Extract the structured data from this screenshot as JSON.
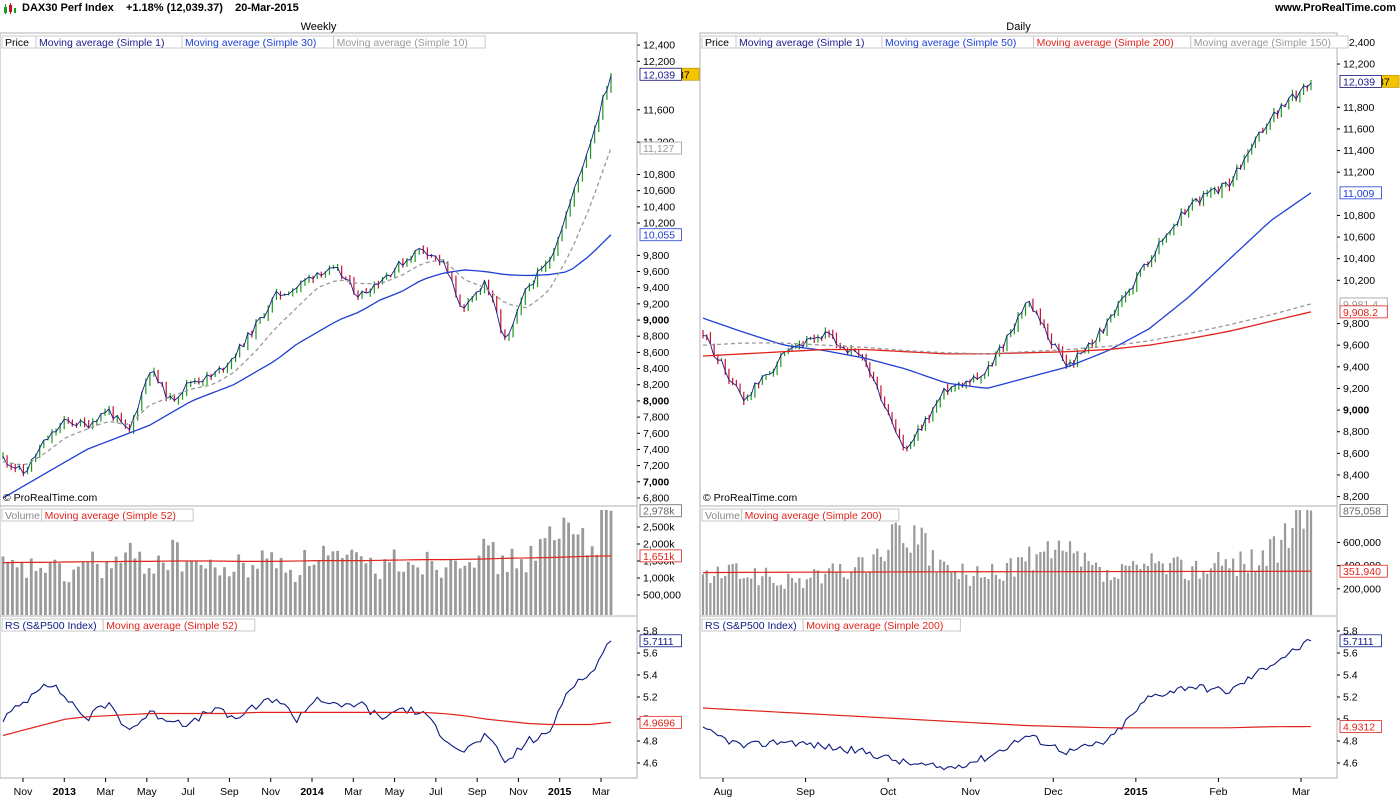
{
  "header": {
    "symbol": "DAX30 Perf Index",
    "change": "+1.18% (12,039.37)",
    "date": "20-Mar-2015",
    "website": "www.ProRealTime.com"
  },
  "colors": {
    "price_up": "#1a9a1a",
    "price_down": "#c8102e",
    "ma_short": "#1a1a8c",
    "ma_blue": "#1f3fd6",
    "ma_red": "#e0231b",
    "ma_gray": "#9a9a9a",
    "volume": "#9a9a9a",
    "rs": "#0a1a80",
    "last_price_box": "#f5c400"
  },
  "panels": {
    "weekly": {
      "period_label": "Weekly",
      "price_legend": [
        "Price",
        "Moving average (Simple 1)",
        "Moving average (Simple 30)",
        "Moving average (Simple 10)"
      ],
      "price_ticks": [
        "12,400",
        "12,200",
        "11,600",
        "11,200",
        "10,800",
        "10,600",
        "10,400",
        "10,200",
        "9,800",
        "9,600",
        "9,400",
        "9,200",
        "9,000",
        "8,800",
        "8,600",
        "8,400",
        "8,200",
        "8,000",
        "7,800",
        "7,600",
        "7,400",
        "7,200",
        "7,000",
        "6,800"
      ],
      "price_boxes": [
        {
          "label": "12,039.37",
          "kind": "last"
        },
        {
          "label": "12,039",
          "kind": "ma_short"
        },
        {
          "label": "11,127",
          "kind": "ma_gray"
        },
        {
          "label": "10,055",
          "kind": "ma_blue"
        }
      ],
      "copyright": "© ProRealTime.com",
      "volume_legend": [
        "Volume",
        "Moving average (Simple 52)"
      ],
      "volume_ticks": [
        "2,500k",
        "2,000k",
        "1,500k",
        "1,000k",
        "500,000"
      ],
      "volume_boxes": [
        {
          "label": "2,978k",
          "kind": "volume"
        },
        {
          "label": "1,651k",
          "kind": "ma_red"
        }
      ],
      "rs_legend": [
        "RS (S&P500 Index)",
        "Moving average (Simple 52)"
      ],
      "rs_ticks": [
        "5.8",
        "5.6",
        "5.4",
        "5.2",
        "5",
        "4.8",
        "4.6"
      ],
      "rs_boxes": [
        {
          "label": "5.7111",
          "kind": "rs"
        },
        {
          "label": "4.9696",
          "kind": "ma_red"
        }
      ],
      "x_labels": [
        "Nov",
        "2013",
        "Mar",
        "May",
        "Jul",
        "Sep",
        "Nov",
        "2014",
        "Mar",
        "May",
        "Jul",
        "Sep",
        "Nov",
        "2015",
        "Mar"
      ]
    },
    "daily": {
      "period_label": "Daily",
      "price_legend": [
        "Price",
        "Moving average (Simple 1)",
        "Moving average (Simple 50)",
        "Moving average (Simple 200)",
        "Moving average (Simple 150)"
      ],
      "price_ticks": [
        "12,400",
        "12,200",
        "11,800",
        "11,600",
        "11,400",
        "11,200",
        "10,800",
        "10,600",
        "10,400",
        "10,200",
        "9,800",
        "9,600",
        "9,400",
        "9,200",
        "9,000",
        "8,800",
        "8,600",
        "8,400",
        "8,200"
      ],
      "price_boxes": [
        {
          "label": "12,039.37",
          "kind": "last"
        },
        {
          "label": "12,039",
          "kind": "ma_short"
        },
        {
          "label": "11,009",
          "kind": "ma_blue"
        },
        {
          "label": "9,981.4",
          "kind": "ma_gray"
        },
        {
          "label": "9,908.2",
          "kind": "ma_red"
        }
      ],
      "copyright": "© ProRealTime.com",
      "volume_legend": [
        "Volume",
        "Moving average (Simple 200)"
      ],
      "volume_ticks": [
        "600,000",
        "400,000",
        "200,000"
      ],
      "volume_boxes": [
        {
          "label": "875,058",
          "kind": "volume"
        },
        {
          "label": "351,940",
          "kind": "ma_red"
        }
      ],
      "rs_legend": [
        "RS (S&P500 Index)",
        "Moving average (Simple 200)"
      ],
      "rs_ticks": [
        "5.8",
        "5.6",
        "5.4",
        "5.2",
        "5",
        "4.8",
        "4.6"
      ],
      "rs_boxes": [
        {
          "label": "5.7111",
          "kind": "rs"
        },
        {
          "label": "4.9312",
          "kind": "ma_red"
        }
      ],
      "x_labels": [
        "Aug",
        "Sep",
        "Oct",
        "Nov",
        "Dec",
        "2015",
        "Feb",
        "Mar"
      ]
    }
  },
  "chart_data": [
    {
      "type": "line",
      "panel": "weekly",
      "title": "Weekly",
      "ylim": [
        6750,
        12500
      ],
      "x": [
        "2012-10",
        "2012-11",
        "2012-12",
        "2013-01",
        "2013-02",
        "2013-03",
        "2013-04",
        "2013-05",
        "2013-06",
        "2013-07",
        "2013-08",
        "2013-09",
        "2013-10",
        "2013-11",
        "2013-12",
        "2014-01",
        "2014-02",
        "2014-03",
        "2014-04",
        "2014-05",
        "2014-06",
        "2014-07",
        "2014-08",
        "2014-09",
        "2014-10",
        "2014-11",
        "2014-12",
        "2015-01",
        "2015-02",
        "2015-03"
      ],
      "series": [
        {
          "name": "Price",
          "values": [
            7300,
            7100,
            7500,
            7750,
            7700,
            7900,
            7600,
            8400,
            8000,
            8250,
            8300,
            8550,
            8900,
            9300,
            9400,
            9600,
            9600,
            9300,
            9500,
            9700,
            9900,
            9700,
            9100,
            9500,
            8700,
            9400,
            9700,
            10400,
            11200,
            12039
          ]
        },
        {
          "name": "Moving average (Simple 30)",
          "values": [
            6800,
            6950,
            7100,
            7250,
            7400,
            7500,
            7600,
            7700,
            7850,
            8000,
            8100,
            8200,
            8350,
            8500,
            8700,
            8850,
            9000,
            9100,
            9250,
            9350,
            9500,
            9580,
            9620,
            9600,
            9560,
            9550,
            9560,
            9600,
            9800,
            10055
          ]
        },
        {
          "name": "Moving average (Simple 10)",
          "values": [
            7250,
            7200,
            7350,
            7550,
            7650,
            7750,
            7700,
            7950,
            8050,
            8150,
            8200,
            8350,
            8600,
            8900,
            9150,
            9400,
            9500,
            9450,
            9450,
            9550,
            9700,
            9750,
            9500,
            9400,
            9200,
            9150,
            9350,
            9800,
            10400,
            11127
          ]
        }
      ]
    },
    {
      "type": "bar",
      "panel": "weekly",
      "title": "Volume",
      "ylim": [
        0,
        3000000
      ],
      "values": [
        1300000,
        1200000,
        1400000,
        1000000,
        1500000,
        1300000,
        1600000,
        1400000,
        1700000,
        1500000,
        1200000,
        1300000,
        1400000,
        1600000,
        1200000,
        1800000,
        1500000,
        1400000,
        1300000,
        1600000,
        1500000,
        1400000,
        1900000,
        1700000,
        1400000,
        1600000,
        2000000,
        2400000,
        2100000,
        2978000
      ],
      "series": [
        {
          "name": "Moving average (Simple 52)",
          "values": [
            1450000,
            1460000,
            1460000,
            1470000,
            1480000,
            1480000,
            1490000,
            1490000,
            1500000,
            1500000,
            1500000,
            1490000,
            1490000,
            1490000,
            1500000,
            1510000,
            1510000,
            1510000,
            1520000,
            1530000,
            1540000,
            1540000,
            1550000,
            1560000,
            1580000,
            1590000,
            1600000,
            1620000,
            1640000,
            1651000
          ]
        }
      ]
    },
    {
      "type": "line",
      "panel": "weekly",
      "title": "RS (S&P500 Index)",
      "ylim": [
        4.5,
        5.9
      ],
      "series": [
        {
          "name": "RS (S&P500 Index)",
          "values": [
            5.0,
            5.15,
            5.35,
            5.2,
            5.0,
            5.15,
            4.9,
            5.05,
            5.0,
            4.95,
            5.1,
            5.0,
            5.1,
            5.2,
            5.0,
            5.2,
            5.1,
            5.15,
            5.0,
            5.1,
            5.05,
            4.85,
            4.7,
            4.85,
            4.6,
            4.8,
            4.85,
            5.3,
            5.4,
            5.7111
          ]
        },
        {
          "name": "Moving average (Simple 52)",
          "values": [
            4.85,
            4.9,
            4.95,
            5.0,
            5.02,
            5.03,
            5.04,
            5.05,
            5.05,
            5.05,
            5.05,
            5.05,
            5.06,
            5.06,
            5.06,
            5.06,
            5.06,
            5.06,
            5.06,
            5.06,
            5.06,
            5.05,
            5.03,
            5.0,
            4.98,
            4.96,
            4.95,
            4.95,
            4.95,
            4.9696
          ]
        }
      ]
    },
    {
      "type": "line",
      "panel": "daily",
      "title": "Daily",
      "ylim": [
        8150,
        12450
      ],
      "x": [
        "2014-08-01",
        "2014-08-15",
        "2014-09-01",
        "2014-09-15",
        "2014-10-01",
        "2014-10-15",
        "2014-11-01",
        "2014-11-15",
        "2014-12-01",
        "2014-12-15",
        "2015-01-01",
        "2015-01-15",
        "2015-02-01",
        "2015-02-15",
        "2015-03-01",
        "2015-03-20"
      ],
      "series": [
        {
          "name": "Price",
          "values": [
            9700,
            9100,
            9500,
            9700,
            9450,
            8600,
            9200,
            9350,
            10000,
            9400,
            9800,
            10400,
            10900,
            11100,
            11700,
            12039
          ]
        },
        {
          "name": "Moving average (Simple 50)",
          "values": [
            9850,
            9720,
            9600,
            9550,
            9480,
            9380,
            9250,
            9200,
            9300,
            9400,
            9550,
            9750,
            10050,
            10400,
            10750,
            11009
          ]
        },
        {
          "name": "Moving average (Simple 200)",
          "values": [
            9500,
            9520,
            9540,
            9560,
            9560,
            9540,
            9520,
            9520,
            9530,
            9540,
            9560,
            9600,
            9660,
            9730,
            9820,
            9908.2
          ]
        },
        {
          "name": "Moving average (Simple 150)",
          "values": [
            9600,
            9620,
            9620,
            9600,
            9580,
            9550,
            9530,
            9520,
            9540,
            9560,
            9590,
            9640,
            9710,
            9790,
            9880,
            9981.4
          ]
        }
      ]
    },
    {
      "type": "bar",
      "panel": "daily",
      "title": "Volume",
      "ylim": [
        0,
        880000
      ],
      "values": [
        300000,
        350000,
        250000,
        320000,
        400000,
        700000,
        350000,
        300000,
        450000,
        500000,
        300000,
        400000,
        380000,
        420000,
        500000,
        875058
      ],
      "series": [
        {
          "name": "Moving average (Simple 200)",
          "values": [
            340000,
            342000,
            343000,
            344000,
            345000,
            346000,
            347000,
            347000,
            348000,
            348000,
            349000,
            349000,
            350000,
            350000,
            351000,
            351940
          ]
        }
      ]
    },
    {
      "type": "line",
      "panel": "daily",
      "title": "RS (S&P500 Index)",
      "ylim": [
        4.5,
        5.9
      ],
      "series": [
        {
          "name": "RS (S&P500 Index)",
          "values": [
            4.9,
            4.75,
            4.8,
            4.75,
            4.7,
            4.6,
            4.55,
            4.65,
            4.85,
            4.7,
            4.8,
            5.2,
            5.3,
            5.25,
            5.5,
            5.7111
          ]
        },
        {
          "name": "Moving average (Simple 200)",
          "values": [
            5.1,
            5.08,
            5.06,
            5.04,
            5.02,
            5.0,
            4.98,
            4.96,
            4.94,
            4.93,
            4.92,
            4.92,
            4.92,
            4.92,
            4.93,
            4.9312
          ]
        }
      ]
    }
  ]
}
